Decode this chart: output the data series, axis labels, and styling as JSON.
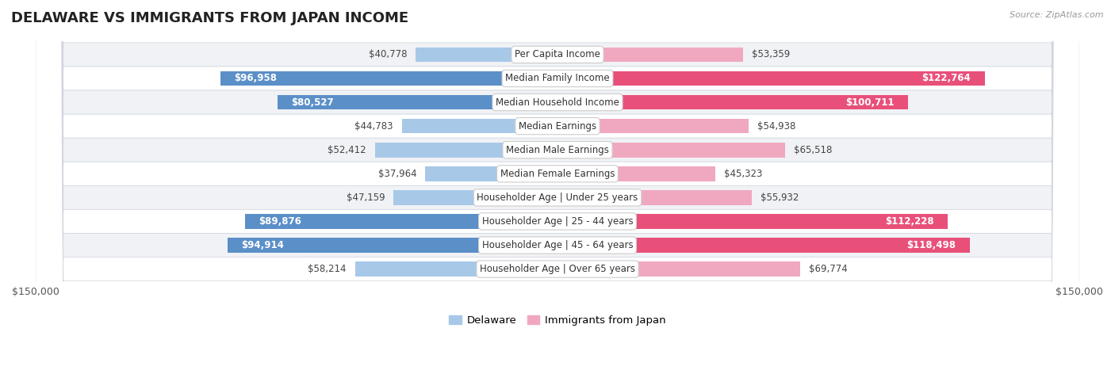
{
  "title": "DELAWARE VS IMMIGRANTS FROM JAPAN INCOME",
  "source": "Source: ZipAtlas.com",
  "categories": [
    "Per Capita Income",
    "Median Family Income",
    "Median Household Income",
    "Median Earnings",
    "Median Male Earnings",
    "Median Female Earnings",
    "Householder Age | Under 25 years",
    "Householder Age | 25 - 44 years",
    "Householder Age | 45 - 64 years",
    "Householder Age | Over 65 years"
  ],
  "delaware_values": [
    40778,
    96958,
    80527,
    44783,
    52412,
    37964,
    47159,
    89876,
    94914,
    58214
  ],
  "japan_values": [
    53359,
    122764,
    100711,
    54938,
    65518,
    45323,
    55932,
    112228,
    118498,
    69774
  ],
  "delaware_labels": [
    "$40,778",
    "$96,958",
    "$80,527",
    "$44,783",
    "$52,412",
    "$37,964",
    "$47,159",
    "$89,876",
    "$94,914",
    "$58,214"
  ],
  "japan_labels": [
    "$53,359",
    "$122,764",
    "$100,711",
    "$54,938",
    "$65,518",
    "$45,323",
    "$55,932",
    "$112,228",
    "$118,498",
    "$69,774"
  ],
  "max_value": 150000,
  "delaware_color_light": "#a8c8e8",
  "delaware_color_dark": "#5b8fc8",
  "japan_color_light": "#f0a8c0",
  "japan_color_dark": "#e8507a",
  "bg_color": "#ffffff",
  "row_color_odd": "#f0f2f5",
  "row_color_even": "#ffffff",
  "row_border_color": "#d0d5dd",
  "label_color_dark": "#444444",
  "label_color_white": "#ffffff",
  "legend_delaware": "Delaware",
  "legend_japan": "Immigrants from Japan",
  "axis_label_left": "$150,000",
  "axis_label_right": "$150,000",
  "delaware_threshold": 65000,
  "japan_threshold": 80000,
  "title_fontsize": 13,
  "label_fontsize": 8.5,
  "category_fontsize": 8.5
}
